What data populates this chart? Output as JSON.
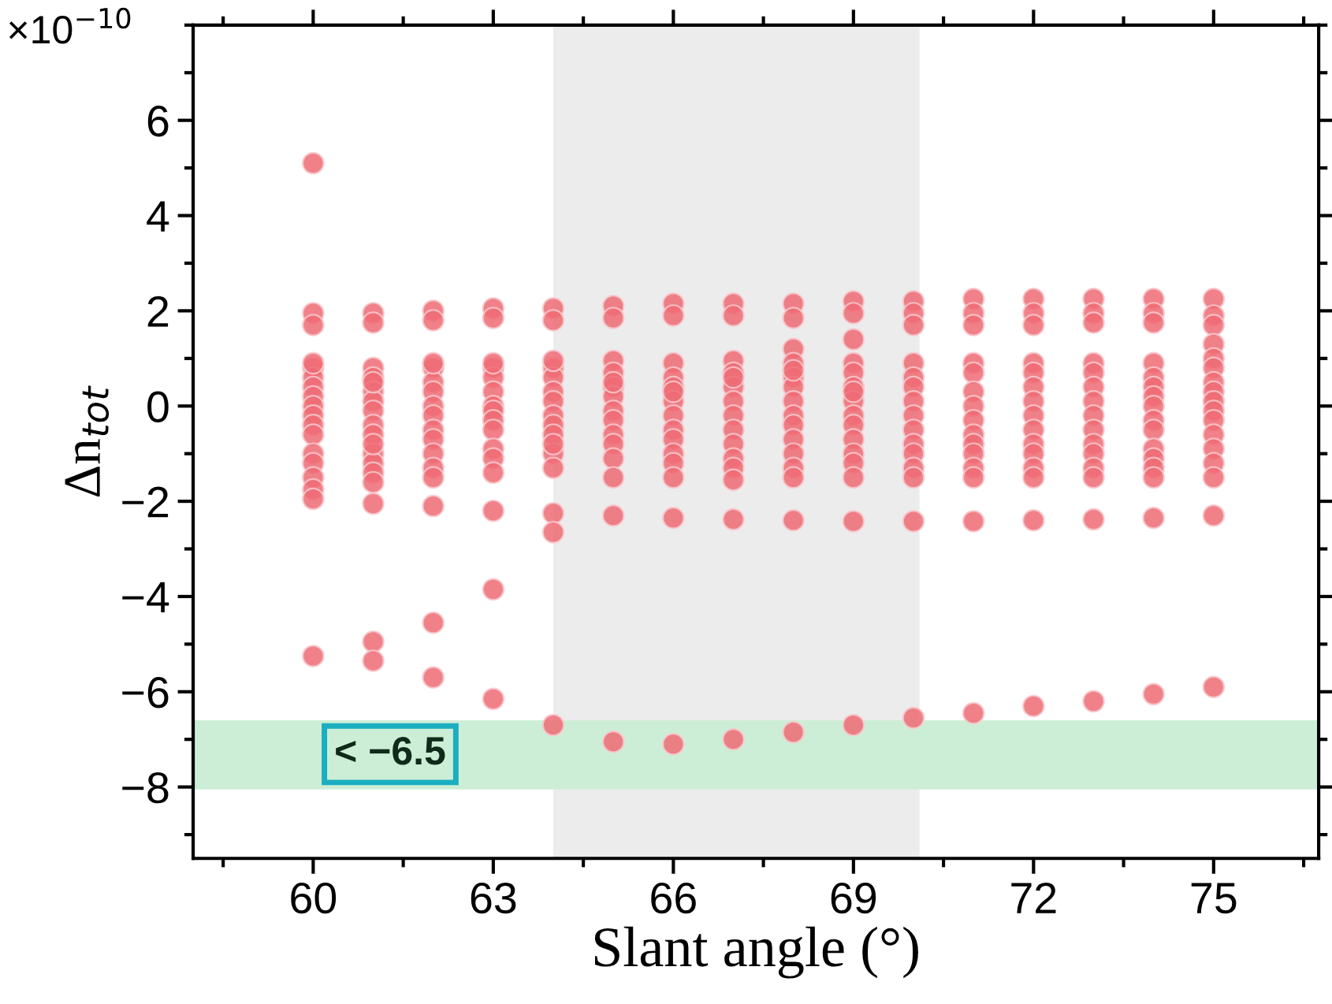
{
  "chart_data": {
    "type": "scatter",
    "xlabel": "Slant angle (°)",
    "ylabel": "Δn$_{tot}$",
    "xlim": [
      58.0,
      76.75
    ],
    "xticks": [
      60,
      63,
      66,
      69,
      72,
      75
    ],
    "ylim": [
      -9.5,
      8.0
    ],
    "yticks": [
      {
        "value": -8,
        "label": "−8"
      },
      {
        "value": -6,
        "label": "−6"
      },
      {
        "value": -4,
        "label": "−4"
      },
      {
        "value": -2,
        "label": "−2"
      },
      0,
      2,
      4,
      6
    ],
    "marker": "circle",
    "grid": false,
    "bands": [
      {
        "axis": "x",
        "from": 64,
        "to": 70.1,
        "color": "#ececec"
      },
      {
        "axis": "y",
        "from": -8.05,
        "to": -6.6,
        "color": "#cdeed6"
      }
    ],
    "annotations": [
      "×10$^{−10}$",
      "< −6.5"
    ],
    "series": [
      {
        "color": "#ee6b74",
        "x": [
          60,
          60,
          60,
          60,
          60,
          60,
          60,
          60,
          60,
          60,
          60,
          60,
          60,
          60,
          60,
          60,
          60,
          60,
          61,
          61,
          61,
          61,
          61,
          61,
          61,
          61,
          61,
          61,
          61,
          61,
          61,
          61,
          61,
          61,
          61,
          61,
          62,
          62,
          62,
          62,
          62,
          62,
          62,
          62,
          62,
          62,
          62,
          62,
          62,
          62,
          62,
          62,
          63,
          63,
          63,
          63,
          63,
          63,
          63,
          63,
          63,
          63,
          63,
          63,
          63,
          63,
          63,
          63,
          64,
          64,
          64,
          64,
          64,
          64,
          64,
          64,
          64,
          64,
          64,
          64,
          64,
          64,
          64,
          64,
          65,
          65,
          65,
          65,
          65,
          65,
          65,
          65,
          65,
          65,
          65,
          65,
          65,
          65,
          65,
          66,
          66,
          66,
          66,
          66,
          66,
          66,
          66,
          66,
          66,
          66,
          66,
          66,
          66,
          66,
          67,
          67,
          67,
          67,
          67,
          67,
          67,
          67,
          67,
          67,
          67,
          67,
          67,
          67,
          67,
          68,
          68,
          68,
          68,
          68,
          68,
          68,
          68,
          68,
          68,
          68,
          68,
          68,
          68,
          68,
          68,
          69,
          69,
          69,
          69,
          69,
          69,
          69,
          69,
          69,
          69,
          69,
          69,
          69,
          69,
          69,
          69,
          70,
          70,
          70,
          70,
          70,
          70,
          70,
          70,
          70,
          70,
          70,
          70,
          70,
          70,
          70,
          71,
          71,
          71,
          71,
          71,
          71,
          71,
          71,
          71,
          71,
          71,
          71,
          71,
          71,
          71,
          72,
          72,
          72,
          72,
          72,
          72,
          72,
          72,
          72,
          72,
          72,
          72,
          72,
          72,
          72,
          73,
          73,
          73,
          73,
          73,
          73,
          73,
          73,
          73,
          73,
          73,
          73,
          73,
          73,
          73,
          74,
          74,
          74,
          74,
          74,
          74,
          74,
          74,
          74,
          74,
          74,
          74,
          74,
          74,
          74,
          74,
          75,
          75,
          75,
          75,
          75,
          75,
          75,
          75,
          75,
          75,
          75,
          75,
          75,
          75,
          75,
          75,
          75
        ],
        "values": [
          5.1,
          1.95,
          1.7,
          0.8,
          0.6,
          0.4,
          0.2,
          0,
          -0.2,
          -0.4,
          -0.6,
          -1.0,
          -1.2,
          -1.5,
          -1.75,
          -1.95,
          -5.25,
          0.9,
          1.95,
          1.75,
          0.8,
          0.6,
          0.3,
          0.1,
          -0.1,
          -0.4,
          -0.6,
          -1.0,
          -1.2,
          -1.4,
          -1.6,
          -2.05,
          -4.95,
          -5.35,
          0.5,
          -0.8,
          2.0,
          1.8,
          0.8,
          0.5,
          0.3,
          0,
          -0.2,
          -0.5,
          -0.7,
          -1.0,
          -1.3,
          -1.5,
          -2.1,
          -4.55,
          -5.7,
          0.9,
          2.05,
          1.85,
          0.8,
          0.6,
          0.3,
          0,
          -0.1,
          -0.3,
          -0.5,
          -0.9,
          -1.1,
          -1.4,
          -2.2,
          -3.85,
          -6.15,
          0.9,
          2.05,
          1.8,
          0.8,
          0.6,
          0.3,
          0.1,
          -0.2,
          -0.4,
          -0.6,
          -1.0,
          -1.3,
          -2.25,
          -2.65,
          -6.7,
          0.95,
          -0.8,
          2.1,
          1.85,
          0.95,
          0.7,
          0.4,
          0.2,
          -0.1,
          -0.3,
          -0.6,
          -0.8,
          -1.1,
          -1.5,
          -2.3,
          -7.05,
          0.5,
          2.15,
          1.9,
          0.9,
          0.6,
          0.4,
          0.1,
          -0.2,
          -0.5,
          -0.7,
          -1.0,
          -1.2,
          -1.5,
          -2.35,
          -7.1,
          0.3,
          2.15,
          1.9,
          0.95,
          0.7,
          0.4,
          0.1,
          -0.2,
          -0.5,
          -0.8,
          -1.1,
          -1.3,
          -1.55,
          -2.38,
          -7.0,
          0.6,
          2.15,
          1.85,
          1.2,
          0.9,
          0.6,
          0.4,
          0.1,
          -0.2,
          -0.4,
          -0.7,
          -1.0,
          -1.3,
          -1.5,
          -2.4,
          -6.85,
          0.75,
          2.2,
          1.95,
          1.4,
          0.9,
          0.7,
          0.4,
          0.1,
          -0.2,
          -0.4,
          -0.7,
          -1.0,
          -1.2,
          -1.5,
          -2.42,
          -6.7,
          0.3,
          2.2,
          1.95,
          1.7,
          0.9,
          0.6,
          0.4,
          0.1,
          -0.2,
          -0.5,
          -0.8,
          -1.0,
          -1.3,
          -1.5,
          -2.42,
          -6.55,
          2.25,
          1.95,
          1.7,
          0.9,
          0.7,
          0.3,
          0,
          -0.3,
          -0.6,
          -0.8,
          -1.0,
          -1.3,
          -1.5,
          -2.42,
          -6.45,
          2.25,
          1.95,
          1.7,
          0.9,
          0.7,
          0.4,
          0.1,
          -0.2,
          -0.5,
          -0.8,
          -1.0,
          -1.3,
          -1.5,
          -2.4,
          -6.3,
          2.25,
          1.95,
          1.75,
          0.9,
          0.7,
          0.4,
          0.1,
          -0.2,
          -0.5,
          -0.8,
          -1.0,
          -1.3,
          -1.5,
          -2.38,
          -6.2,
          2.25,
          1.95,
          1.75,
          0.9,
          0.6,
          0.4,
          0.2,
          0,
          -0.3,
          -0.5,
          -0.9,
          -1.1,
          -1.3,
          -1.5,
          -2.35,
          -6.05,
          2.25,
          1.9,
          1.7,
          1.3,
          1.0,
          0.8,
          0.5,
          0.3,
          0.1,
          -0.1,
          -0.3,
          -0.6,
          -0.9,
          -1.2,
          -1.5,
          -2.3,
          -5.9
        ]
      }
    ]
  }
}
